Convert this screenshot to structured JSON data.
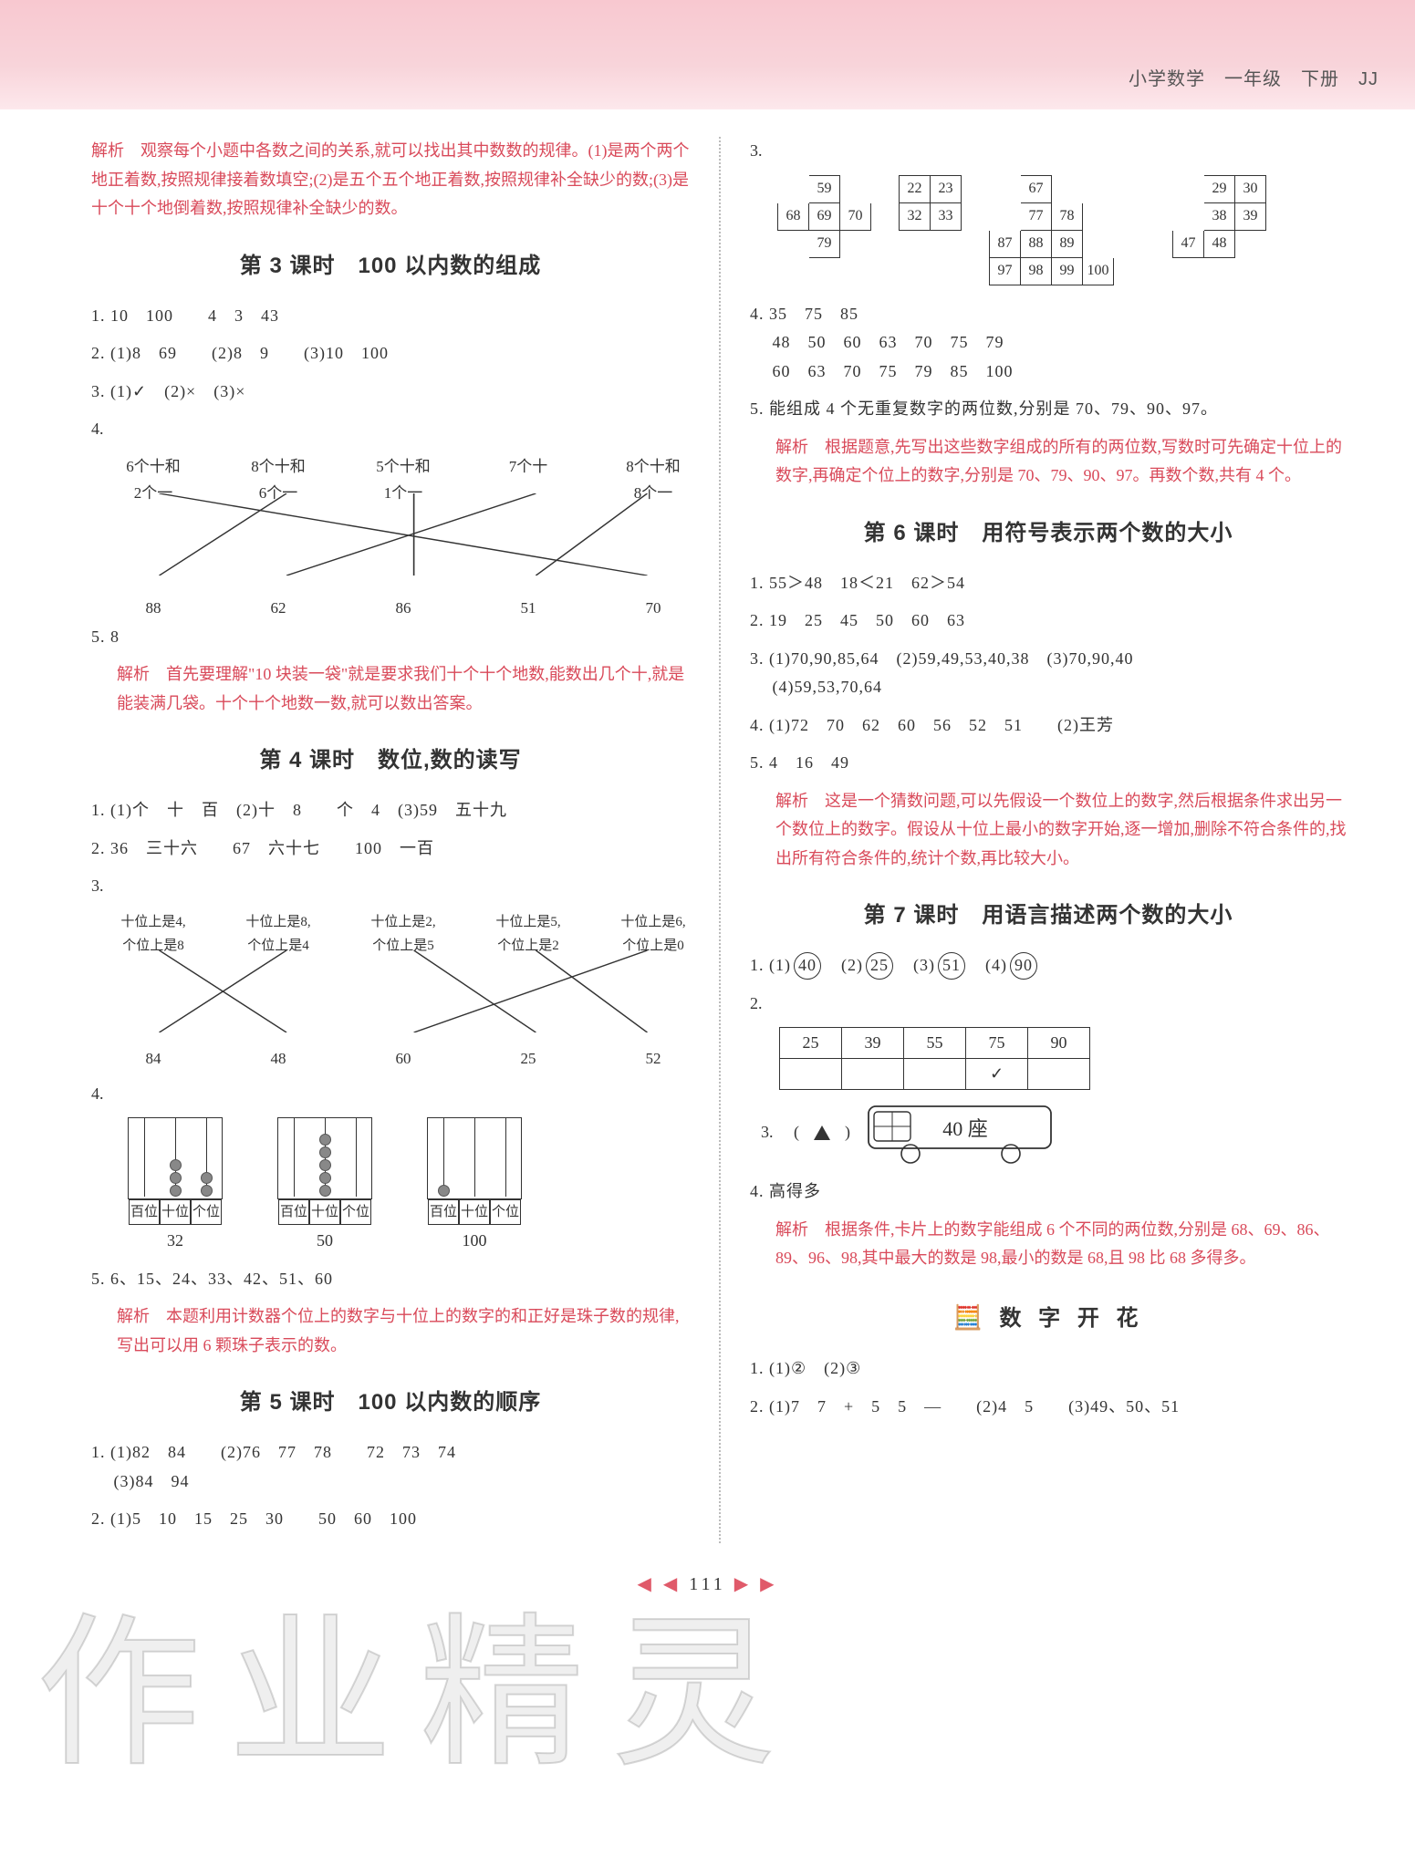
{
  "header": {
    "grade": "小学数学　一年级　下册　JJ"
  },
  "watermark": "作业精灵",
  "left": {
    "analysis_top": "解析　观察每个小题中各数之间的关系,就可以找出其中数数的规律。(1)是两个两个地正着数,按照规律接着数填空;(2)是五个五个地正着数,按照规律补全缺少的数;(3)是十个十个地倒着数,按照规律补全缺少的数。",
    "lesson3": {
      "title": "第 3 课时　100 以内数的组成",
      "q1": "1. 10　100　　4　3　43",
      "q2": "2. (1)8　69　　(2)8　9　　(3)10　100",
      "q3": "3. (1)✓　(2)×　(3)×",
      "q4_top": [
        "6个十和\n2个一",
        "8个十和\n6个一",
        "5个十和\n1个一",
        "7个十",
        "8个十和\n8个一"
      ],
      "q4_bot": [
        "88",
        "62",
        "86",
        "51",
        "70"
      ],
      "q5": "5. 8",
      "q5_analysis": "解析　首先要理解\"10 块装一袋\"就是要求我们十个十个地数,能数出几个十,就是能装满几袋。十个十个地数一数,就可以数出答案。"
    },
    "lesson4": {
      "title": "第 4 课时　数位,数的读写",
      "q1": "1. (1)个　十　百　(2)十　8　　个　4　(3)59　五十九",
      "q2": "2. 36　三十六　　67　六十七　　100　一百",
      "q3_top": [
        "十位上是4,\n个位上是8",
        "十位上是8,\n个位上是4",
        "十位上是2,\n个位上是5",
        "十位上是5,\n个位上是2",
        "十位上是6,\n个位上是0"
      ],
      "q3_bot": [
        "84",
        "48",
        "60",
        "25",
        "52"
      ],
      "abacus": [
        {
          "cols": [
            0,
            3,
            2
          ],
          "labels": [
            "百位",
            "十位",
            "个位"
          ],
          "number": "32"
        },
        {
          "cols": [
            0,
            5,
            0
          ],
          "labels": [
            "百位",
            "十位",
            "个位"
          ],
          "number": "50"
        },
        {
          "cols": [
            1,
            0,
            0
          ],
          "labels": [
            "百位",
            "十位",
            "个位"
          ],
          "number": "100"
        }
      ],
      "q5": "5. 6、15、24、33、42、51、60",
      "q5_analysis": "解析　本题利用计数器个位上的数字与十位上的数字的和正好是珠子数的规律,写出可以用 6 颗珠子表示的数。"
    },
    "lesson5": {
      "title": "第 5 课时　100 以内数的顺序",
      "q1": "1. (1)82　84　　(2)76　77　78　　72　73　74\n　 (3)84　94",
      "q2": "2. (1)5　10　15　25　30　　50　60　100"
    }
  },
  "right": {
    "grids": [
      [
        [
          "",
          "59",
          ""
        ],
        [
          "68",
          "69",
          "70"
        ],
        [
          "",
          "79",
          ""
        ]
      ],
      [
        [
          "22",
          "23"
        ],
        [
          "32",
          "33"
        ]
      ],
      [
        [
          "",
          "67",
          "",
          "",
          ""
        ],
        [
          "",
          "77",
          "78",
          "",
          ""
        ],
        [
          "87",
          "88",
          "89",
          "",
          ""
        ],
        [
          "97",
          "98",
          "99",
          "100",
          ""
        ]
      ],
      [
        [
          "",
          "29",
          "30"
        ],
        [
          "",
          "38",
          "39"
        ],
        [
          "47",
          "48",
          ""
        ]
      ]
    ],
    "q4": "4. 35　75　85\n　 48　50　60　63　70　75　79\n　 60　63　70　75　79　85　100",
    "q5": "5. 能组成 4 个无重复数字的两位数,分别是 70、79、90、97。",
    "q5_analysis": "解析　根据题意,先写出这些数字组成的所有的两位数,写数时可先确定十位上的数字,再确定个位上的数字,分别是 70、79、90、97。再数个数,共有 4 个。",
    "lesson6": {
      "title": "第 6 课时　用符号表示两个数的大小",
      "q1": "1. 55＞48　18＜21　62＞54",
      "q2": "2. 19　25　45　50　60　63",
      "q3": "3. (1)70,90,85,64　(2)59,49,53,40,38　(3)70,90,40\n　 (4)59,53,70,64",
      "q4": "4. (1)72　70　62　60　56　52　51　　(2)王芳",
      "q5": "5. 4　16　49",
      "q5_analysis": "解析　这是一个猜数问题,可以先假设一个数位上的数字,然后根据条件求出另一个数位上的数字。假设从十位上最小的数字开始,逐一增加,删除不符合条件的,找出所有符合条件的,统计个数,再比较大小。"
    },
    "lesson7": {
      "title": "第 7 课时　用语言描述两个数的大小",
      "q1_label": "1. ",
      "q1_items": [
        [
          "(1)",
          "40"
        ],
        [
          "(2)",
          "25"
        ],
        [
          "(3)",
          "51"
        ],
        [
          "(4)",
          "90"
        ]
      ],
      "q2_header": [
        "25",
        "39",
        "55",
        "75",
        "90"
      ],
      "q2_check_col": 3,
      "q3_label": "3. 　( ",
      "q3_paren_close": " )",
      "bus_text": "40 座",
      "q4": "4. 高得多",
      "q4_analysis": "解析　根据条件,卡片上的数字能组成 6 个不同的两位数,分别是 68、69、86、89、96、98,其中最大的数是 98,最小的数是 68,且 98 比 68 多得多。"
    },
    "flower": {
      "title": "数 字 开 花",
      "q1": "1. (1)②　(2)③",
      "q2": "2. (1)7　7　+　5　5　—　　(2)4　5　　(3)49、50、51"
    }
  },
  "footer": {
    "left_arrows": "◀ ◀",
    "num": "111",
    "right_arrows": "▶ ▶"
  },
  "colors": {
    "accent": "#d94a5a",
    "header_band": "#f8c8d0",
    "text": "#333333",
    "border": "#333333"
  }
}
